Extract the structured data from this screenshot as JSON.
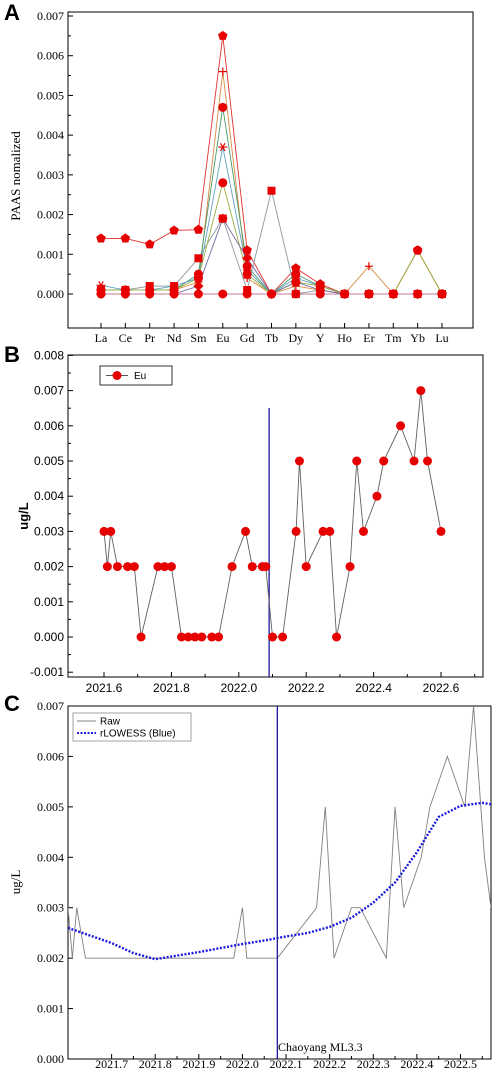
{
  "panels": {
    "a": "A",
    "b": "B",
    "c": "C"
  },
  "chart_data": [
    {
      "type": "line",
      "panel": "A",
      "ylabel": "PAAS nomalized",
      "ylim": [
        0,
        0.007
      ],
      "yticks": [
        "0.000",
        "0.001",
        "0.002",
        "0.003",
        "0.004",
        "0.005",
        "0.006",
        "0.007"
      ],
      "categories": [
        "La",
        "Ce",
        "Pr",
        "Nd",
        "Sm",
        "Eu",
        "Gd",
        "Tb",
        "Dy",
        "Y",
        "Ho",
        "Er",
        "Tm",
        "Yb",
        "Lu"
      ],
      "series": [
        {
          "color": "#e03030",
          "marker": "pentagon",
          "values": [
            0.0014,
            0.0014,
            0.00125,
            0.0016,
            0.00162,
            0.0065,
            0.0011,
            0,
            0.00065,
            0.00025,
            0,
            0,
            0,
            0.0011,
            0
          ]
        },
        {
          "color": "#d88a40",
          "marker": "plus",
          "values": [
            0.0001,
            0.0001,
            0.0001,
            0.0001,
            0.0003,
            0.0056,
            0.0004,
            0,
            0.0002,
            0.0001,
            0,
            0.0007,
            0,
            0,
            0
          ]
        },
        {
          "color": "#8a9aa0",
          "marker": "square",
          "values": [
            0.0001,
            0.0001,
            0.0002,
            0.0002,
            0.0009,
            0.0019,
            0.0001,
            0.0026,
            0,
            0.0001,
            0,
            0,
            0,
            0,
            0
          ]
        },
        {
          "color": "#4a9a6a",
          "marker": "circle",
          "values": [
            0.0001,
            0.0001,
            0.0001,
            0.0001,
            0.0005,
            0.0047,
            0.0007,
            0,
            0.0005,
            0.0002,
            0,
            0,
            0,
            0,
            0
          ]
        },
        {
          "color": "#60a0c0",
          "marker": "star",
          "values": [
            0.00022,
            0.0001,
            0.0001,
            0.0002,
            0.0004,
            0.0037,
            0.0006,
            0,
            0.0004,
            0.0002,
            0,
            0,
            0,
            0,
            0
          ]
        },
        {
          "color": "#9ab040",
          "marker": "circle",
          "values": [
            0.0001,
            0.0001,
            0.0001,
            0.0001,
            0.0004,
            0.0028,
            0.0005,
            0,
            0.0003,
            0.0002,
            0,
            0,
            0,
            0.0011,
            0
          ]
        },
        {
          "color": "#7a6aa0",
          "marker": "diamond",
          "values": [
            0,
            0,
            0,
            0,
            0.0002,
            0.0019,
            0.0009,
            0,
            0.0003,
            0.0001,
            0,
            0,
            0,
            0,
            0
          ]
        },
        {
          "color": "#c07a9a",
          "marker": "circle",
          "values": [
            0,
            0,
            0,
            0,
            0,
            0,
            0,
            0,
            0,
            0,
            0,
            0,
            0,
            0,
            0
          ]
        }
      ]
    },
    {
      "type": "line",
      "panel": "B",
      "ylabel": "ug/L",
      "legend": [
        "Eu"
      ],
      "ylim": [
        -0.001,
        0.008
      ],
      "xlim": [
        2021.5,
        2022.7
      ],
      "yticks": [
        "-0.001",
        "0.000",
        "0.001",
        "0.002",
        "0.003",
        "0.004",
        "0.005",
        "0.006",
        "0.007",
        "0.008"
      ],
      "xticks": [
        "2021.6",
        "2021.8",
        "2022.0",
        "2022.2",
        "2022.4",
        "2022.6"
      ],
      "x": [
        2021.6,
        2021.61,
        2021.62,
        2021.64,
        2021.67,
        2021.69,
        2021.71,
        2021.76,
        2021.78,
        2021.8,
        2021.83,
        2021.85,
        2021.87,
        2021.89,
        2021.92,
        2021.94,
        2021.98,
        2022.02,
        2022.04,
        2022.07,
        2022.08,
        2022.1,
        2022.13,
        2022.17,
        2022.18,
        2022.2,
        2022.25,
        2022.27,
        2022.29,
        2022.33,
        2022.35,
        2022.37,
        2022.41,
        2022.43,
        2022.48,
        2022.52,
        2022.54,
        2022.56,
        2022.6
      ],
      "y": [
        0.003,
        0.002,
        0.003,
        0.002,
        0.002,
        0.002,
        0.0,
        0.002,
        0.002,
        0.002,
        0.0,
        0.0,
        0.0,
        0.0,
        0.0,
        0.0,
        0.002,
        0.003,
        0.002,
        0.002,
        0.002,
        0.0,
        0.0,
        0.003,
        0.005,
        0.002,
        0.003,
        0.003,
        0.0,
        0.002,
        0.005,
        0.003,
        0.004,
        0.005,
        0.006,
        0.005,
        0.007,
        0.005,
        0.003
      ],
      "marker_x": [
        2022.08
      ],
      "vline_x": 2022.09
    },
    {
      "type": "line",
      "panel": "C",
      "ylabel": "ug/L",
      "ylim": [
        0,
        0.007
      ],
      "xlim": [
        2021.6,
        2022.57
      ],
      "yticks": [
        "0.000",
        "0.001",
        "0.002",
        "0.003",
        "0.004",
        "0.005",
        "0.006",
        "0.007"
      ],
      "xticks": [
        "2021.7",
        "2021.8",
        "2021.9",
        "2022.0",
        "2022.1",
        "2022.2",
        "2022.3",
        "2022.4",
        "2022.5"
      ],
      "legend": [
        "Raw",
        "rLOWESS (Blue)"
      ],
      "raw_x": [
        2021.6,
        2021.61,
        2021.62,
        2021.64,
        2021.71,
        2021.76,
        2021.8,
        2021.98,
        2022.0,
        2022.01,
        2022.07,
        2022.08,
        2022.17,
        2022.19,
        2022.21,
        2022.25,
        2022.27,
        2022.3,
        2022.33,
        2022.35,
        2022.37,
        2022.41,
        2022.43,
        2022.47,
        2022.51,
        2022.53,
        2022.555,
        2022.57
      ],
      "raw_y": [
        0.003,
        0.002,
        0.003,
        0.002,
        0.002,
        0.002,
        0.002,
        0.002,
        0.003,
        0.002,
        0.002,
        0.002,
        0.003,
        0.005,
        0.002,
        0.003,
        0.003,
        0.0025,
        0.002,
        0.005,
        0.003,
        0.004,
        0.005,
        0.006,
        0.005,
        0.007,
        0.004,
        0.003
      ],
      "smooth_x": [
        2021.6,
        2021.65,
        2021.7,
        2021.75,
        2021.8,
        2021.85,
        2021.9,
        2021.95,
        2022.0,
        2022.05,
        2022.1,
        2022.15,
        2022.2,
        2022.25,
        2022.3,
        2022.35,
        2022.4,
        2022.45,
        2022.5,
        2022.55,
        2022.57
      ],
      "smooth_y": [
        0.0026,
        0.00245,
        0.0023,
        0.0021,
        0.00198,
        0.00205,
        0.00212,
        0.0022,
        0.00228,
        0.00235,
        0.00243,
        0.0025,
        0.00262,
        0.0028,
        0.0031,
        0.0035,
        0.0041,
        0.0048,
        0.00502,
        0.00508,
        0.00505
      ],
      "vline_x": 2022.08,
      "annotation": "Chaoyang ML3.3"
    }
  ]
}
